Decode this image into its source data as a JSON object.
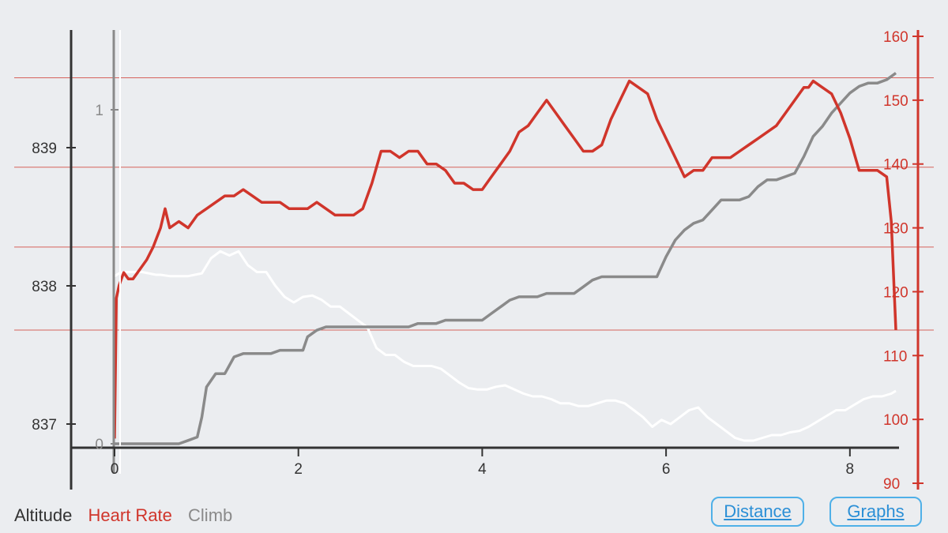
{
  "legend": {
    "altitude": "Altitude",
    "heart_rate": "Heart Rate",
    "climb": "Climb"
  },
  "buttons": {
    "distance": "Distance",
    "graphs": "Graphs"
  },
  "colors": {
    "altitude": "#ffffff",
    "heart_rate": "#d0352b",
    "climb": "#8a8a8a",
    "background": "#ebedf0",
    "axis": "#333333",
    "button": "#4fb0e8"
  },
  "chart_data": {
    "type": "line",
    "x_axis": {
      "range": [
        0,
        8.5
      ],
      "ticks": [
        0,
        2,
        4,
        6,
        8
      ]
    },
    "y_axis_altitude": {
      "range": [
        836.83,
        839.9
      ],
      "ticks": [
        837,
        838,
        839
      ]
    },
    "y_axis_climb": {
      "range": [
        -0.01,
        1.45
      ],
      "ticks": [
        0,
        1
      ]
    },
    "y_axis_heart_rate": {
      "range": [
        89,
        161
      ],
      "ticks": [
        90,
        100,
        110,
        120,
        130,
        140,
        150,
        160
      ]
    },
    "series": [
      {
        "name": "Heart Rate",
        "axis": "right",
        "x": [
          0,
          0.02,
          0.05,
          0.1,
          0.15,
          0.2,
          0.3,
          0.35,
          0.42,
          0.5,
          0.55,
          0.6,
          0.7,
          0.8,
          0.9,
          1.0,
          1.1,
          1.2,
          1.3,
          1.4,
          1.5,
          1.6,
          1.7,
          1.8,
          1.9,
          2.0,
          2.1,
          2.2,
          2.3,
          2.4,
          2.5,
          2.6,
          2.7,
          2.8,
          2.9,
          3.0,
          3.1,
          3.2,
          3.3,
          3.4,
          3.5,
          3.6,
          3.7,
          3.8,
          3.9,
          4.0,
          4.1,
          4.2,
          4.3,
          4.4,
          4.5,
          4.6,
          4.7,
          4.8,
          4.9,
          5.0,
          5.1,
          5.2,
          5.3,
          5.4,
          5.5,
          5.6,
          5.7,
          5.8,
          5.9,
          6.0,
          6.1,
          6.2,
          6.3,
          6.4,
          6.5,
          6.6,
          6.7,
          6.8,
          6.9,
          7.0,
          7.1,
          7.2,
          7.3,
          7.4,
          7.5,
          7.55,
          7.6,
          7.7,
          7.8,
          7.9,
          8.0,
          8.1,
          8.2,
          8.3,
          8.4,
          8.45,
          8.5
        ],
        "values": [
          97,
          119,
          121,
          123,
          122,
          122,
          124,
          125,
          127,
          130,
          133,
          130,
          131,
          130,
          132,
          133,
          134,
          135,
          135,
          136,
          135,
          134,
          134,
          134,
          133,
          133,
          133,
          134,
          133,
          132,
          132,
          132,
          133,
          137,
          142,
          142,
          141,
          142,
          142,
          140,
          140,
          139,
          137,
          137,
          136,
          136,
          138,
          140,
          142,
          145,
          146,
          148,
          150,
          148,
          146,
          144,
          142,
          142,
          143,
          147,
          150,
          153,
          152,
          151,
          147,
          144,
          141,
          138,
          139,
          139,
          141,
          141,
          141,
          142,
          143,
          144,
          145,
          146,
          148,
          150,
          152,
          152,
          153,
          152,
          151,
          148,
          144,
          139,
          139,
          139,
          138,
          131,
          114
        ]
      },
      {
        "name": "Altitude",
        "axis": "left",
        "x": [
          0,
          0.05,
          0.1,
          0.2,
          0.3,
          0.45,
          0.5,
          0.6,
          0.7,
          0.8,
          0.95,
          1.05,
          1.15,
          1.25,
          1.35,
          1.45,
          1.55,
          1.65,
          1.75,
          1.85,
          1.95,
          2.05,
          2.15,
          2.25,
          2.35,
          2.45,
          2.55,
          2.65,
          2.75,
          2.85,
          2.95,
          3.05,
          3.15,
          3.25,
          3.35,
          3.45,
          3.55,
          3.65,
          3.75,
          3.85,
          3.95,
          4.05,
          4.15,
          4.25,
          4.35,
          4.45,
          4.55,
          4.65,
          4.75,
          4.85,
          4.95,
          5.05,
          5.15,
          5.25,
          5.35,
          5.45,
          5.55,
          5.65,
          5.75,
          5.85,
          5.95,
          6.05,
          6.15,
          6.25,
          6.35,
          6.45,
          6.55,
          6.65,
          6.75,
          6.85,
          6.95,
          7.05,
          7.15,
          7.25,
          7.35,
          7.45,
          7.55,
          7.65,
          7.75,
          7.85,
          7.95,
          8.05,
          8.15,
          8.25,
          8.35,
          8.45,
          8.5
        ],
        "values": [
          838.07,
          838.09,
          838.1,
          838.1,
          838.1,
          838.08,
          838.08,
          838.07,
          838.07,
          838.07,
          838.09,
          838.2,
          838.25,
          838.22,
          838.25,
          838.15,
          838.1,
          838.1,
          838.0,
          837.92,
          837.88,
          837.92,
          837.93,
          837.9,
          837.85,
          837.85,
          837.8,
          837.75,
          837.7,
          837.55,
          837.5,
          837.5,
          837.45,
          837.42,
          837.42,
          837.42,
          837.4,
          837.35,
          837.3,
          837.26,
          837.25,
          837.25,
          837.27,
          837.28,
          837.25,
          837.22,
          837.2,
          837.2,
          837.18,
          837.15,
          837.15,
          837.13,
          837.13,
          837.15,
          837.17,
          837.17,
          837.15,
          837.1,
          837.05,
          836.98,
          837.03,
          837.0,
          837.05,
          837.1,
          837.12,
          837.05,
          837.0,
          836.95,
          836.9,
          836.88,
          836.88,
          836.9,
          836.92,
          836.92,
          836.94,
          836.95,
          836.98,
          837.02,
          837.06,
          837.1,
          837.1,
          837.14,
          837.18,
          837.2,
          837.2,
          837.22,
          837.24
        ]
      },
      {
        "name": "Climb",
        "axis": "left-inner",
        "x": [
          0,
          0.2,
          0.4,
          0.6,
          0.7,
          0.8,
          0.9,
          0.95,
          1.0,
          1.1,
          1.2,
          1.3,
          1.4,
          1.5,
          1.6,
          1.7,
          1.8,
          1.9,
          2.0,
          2.05,
          2.1,
          2.2,
          2.3,
          2.4,
          2.5,
          2.6,
          2.7,
          2.8,
          2.9,
          3.0,
          3.1,
          3.2,
          3.3,
          3.4,
          3.5,
          3.6,
          3.7,
          3.8,
          3.9,
          4.0,
          4.1,
          4.2,
          4.3,
          4.4,
          4.5,
          4.6,
          4.7,
          4.8,
          4.9,
          5.0,
          5.1,
          5.2,
          5.3,
          5.4,
          5.5,
          5.6,
          5.7,
          5.8,
          5.9,
          6.0,
          6.1,
          6.2,
          6.3,
          6.4,
          6.5,
          6.6,
          6.7,
          6.8,
          6.9,
          7.0,
          7.1,
          7.2,
          7.3,
          7.4,
          7.5,
          7.6,
          7.7,
          7.8,
          7.9,
          8.0,
          8.1,
          8.2,
          8.3,
          8.4,
          8.5
        ],
        "values": [
          0.0,
          0.0,
          0.0,
          0.0,
          0.0,
          0.01,
          0.02,
          0.08,
          0.17,
          0.21,
          0.21,
          0.26,
          0.27,
          0.27,
          0.27,
          0.27,
          0.28,
          0.28,
          0.28,
          0.28,
          0.32,
          0.34,
          0.35,
          0.35,
          0.35,
          0.35,
          0.35,
          0.35,
          0.35,
          0.35,
          0.35,
          0.35,
          0.36,
          0.36,
          0.36,
          0.37,
          0.37,
          0.37,
          0.37,
          0.37,
          0.39,
          0.41,
          0.43,
          0.44,
          0.44,
          0.44,
          0.45,
          0.45,
          0.45,
          0.45,
          0.47,
          0.49,
          0.5,
          0.5,
          0.5,
          0.5,
          0.5,
          0.5,
          0.5,
          0.56,
          0.61,
          0.64,
          0.66,
          0.67,
          0.7,
          0.73,
          0.73,
          0.73,
          0.74,
          0.77,
          0.79,
          0.79,
          0.8,
          0.81,
          0.86,
          0.92,
          0.95,
          0.99,
          1.02,
          1.05,
          1.07,
          1.08,
          1.08,
          1.09,
          1.11
        ]
      }
    ],
    "reference_lines_heart_rate": [
      114,
      127,
      139.5,
      153.5
    ]
  }
}
